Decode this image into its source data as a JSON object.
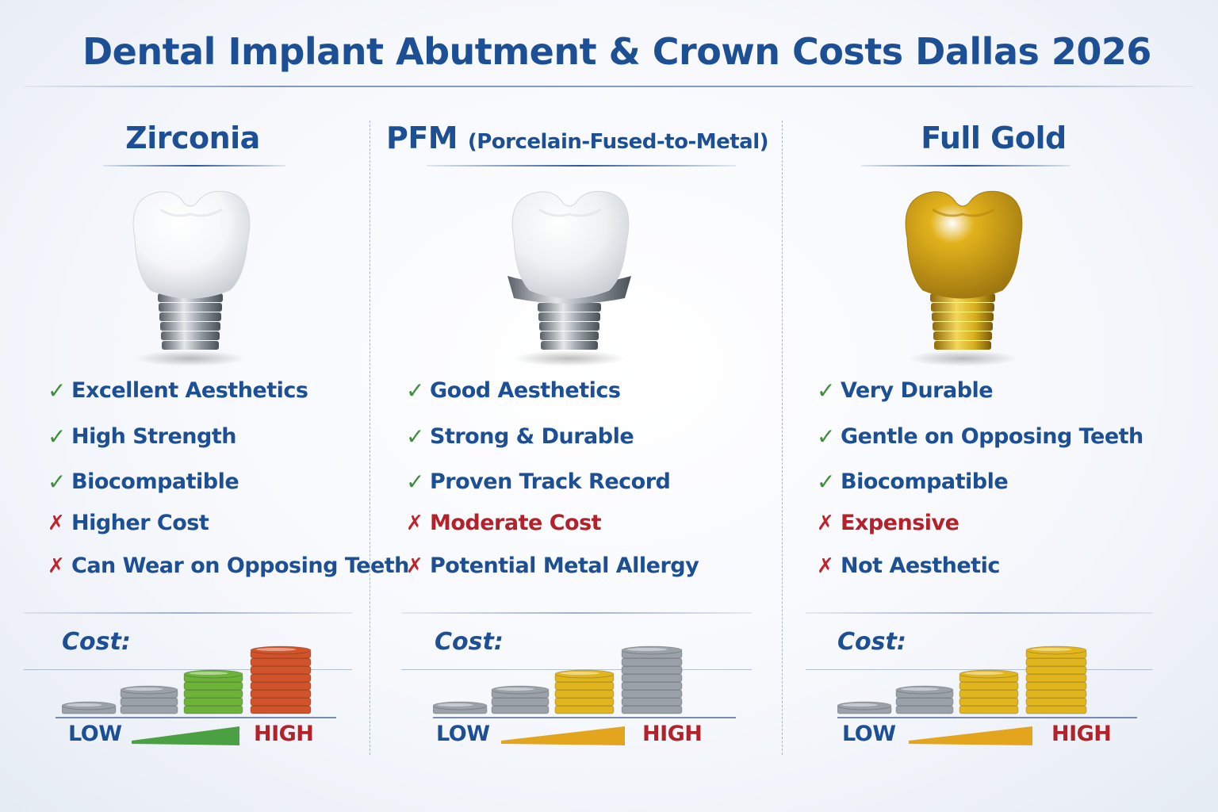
{
  "title": "Dental Implant Abutment & Crown Costs Dallas 2026",
  "columns": [
    {
      "heading": "Zirconia",
      "heading_sub": "",
      "features": [
        {
          "text": "Excellent Aesthetics",
          "type": "pro"
        },
        {
          "text": "High Strength",
          "type": "pro"
        },
        {
          "text": "Biocompatible",
          "type": "pro"
        },
        {
          "text": "Higher Cost",
          "type": "con"
        },
        {
          "text": "Can Wear on Opposing Teeth",
          "type": "con"
        }
      ],
      "cost_label": "Cost:",
      "low_label": "LOW",
      "high_label": "HIGH",
      "crown_color": "#f4f6f8",
      "abutment_color": "#8d949c",
      "wedge_color": "#4aa043",
      "coin_colors": [
        "#9aa1a8",
        "#9aa1a8",
        "#6db33a",
        "#d0532a"
      ]
    },
    {
      "heading": "PFM",
      "heading_sub": "(Porcelain-Fused-to-Metal)",
      "features": [
        {
          "text": "Good Aesthetics",
          "type": "pro"
        },
        {
          "text": "Strong & Durable",
          "type": "pro"
        },
        {
          "text": "Proven Track Record",
          "type": "pro"
        },
        {
          "text": "Moderate Cost",
          "type": "con"
        },
        {
          "text": "Potential Metal Allergy",
          "type": "con"
        }
      ],
      "cost_label": "Cost:",
      "low_label": "LOW",
      "high_label": "HIGH",
      "crown_color": "#eef0f2",
      "abutment_color": "#8d949c",
      "wedge_color": "#e3a51e",
      "coin_colors": [
        "#9aa1a8",
        "#9aa1a8",
        "#e0b51e",
        "#9aa1a8"
      ]
    },
    {
      "heading": "Full Gold",
      "heading_sub": "",
      "features": [
        {
          "text": "Very Durable",
          "type": "pro"
        },
        {
          "text": "Gentle on Opposing Teeth",
          "type": "pro"
        },
        {
          "text": "Biocompatible",
          "type": "pro"
        },
        {
          "text": "Expensive",
          "type": "con"
        },
        {
          "text": "Not Aesthetic",
          "type": "con"
        }
      ],
      "cost_label": "Cost:",
      "low_label": "LOW",
      "high_label": "HIGH",
      "crown_color": "#e2b21c",
      "abutment_color": "#d7ad1e",
      "wedge_color": "#e3a51e",
      "coin_colors": [
        "#9aa1a8",
        "#9aa1a8",
        "#e0b51e",
        "#e0b51e"
      ]
    }
  ]
}
